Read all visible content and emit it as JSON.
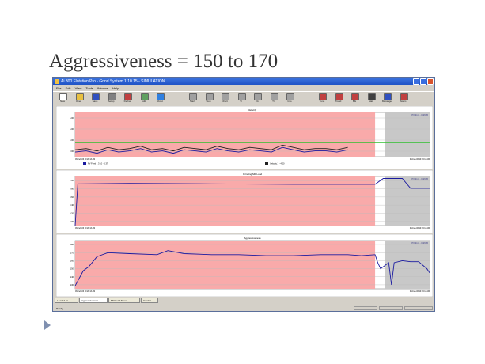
{
  "slide": {
    "title": "Aggressiveness = 150 to 170"
  },
  "app": {
    "window_title": "Ai 300 Flotation Pro - Grind System 1 10 15 - SIMULATION",
    "menu": [
      "File",
      "Edit",
      "View",
      "Tools",
      "Window",
      "Help"
    ],
    "toolbar": [
      {
        "label": "New",
        "color": "#ffffff"
      },
      {
        "label": "Open",
        "color": "#e8c040"
      },
      {
        "label": "Save",
        "color": "#3050c0"
      },
      {
        "label": "Setup",
        "color": "#808080"
      },
      {
        "label": "Define",
        "color": "#c04040"
      },
      {
        "label": "Edit",
        "color": "#60a060"
      },
      {
        "label": "About",
        "color": "#3080e0"
      },
      {
        "label": "Start",
        "color": "#a0a0a0"
      },
      {
        "label": "Stop",
        "color": "#a0a0a0"
      },
      {
        "label": "Chart",
        "color": "#a0a0a0"
      },
      {
        "label": "Tr",
        "color": "#a0a0a0"
      },
      {
        "label": "Ov",
        "color": "#a0a0a0"
      },
      {
        "label": "Tr",
        "color": "#a0a0a0"
      },
      {
        "label": "Info",
        "color": "#a0a0a0"
      },
      {
        "label": "Tune",
        "color": "#c04040"
      },
      {
        "label": "Trend",
        "color": "#c04040"
      },
      {
        "label": "Blk",
        "color": "#c04040"
      },
      {
        "label": "Stat",
        "color": "#404040"
      },
      {
        "label": "Message",
        "color": "#3050c0"
      },
      {
        "label": "Alarm",
        "color": "#c04040"
      }
    ],
    "status": "Ready"
  },
  "charts": [
    {
      "name": "Velocity",
      "title": "Velocity",
      "shade_label": "PV/S1.0 - C3/C26",
      "left_time": "09-Feb-06 10:28:13 AM",
      "mid_time": "",
      "right_time": "09-Feb-06 10:29:13 AM",
      "legend": [
        {
          "label": "PV Feed 1 3 10 - 6.37",
          "color": "#1a1aa0"
        },
        {
          "label": "Velocity 2 - 4.00",
          "color": "#202020"
        }
      ],
      "y_ticks": [
        "6.00",
        "5.00",
        "4.00",
        "3.00"
      ],
      "ylabel": ""
    },
    {
      "name": "Grinding Mill Load",
      "title": "Grinding Mill Load",
      "shade_label": "PV/S1.0 - C3/C26",
      "left_time": "09-Feb-06 10:28:13 AM",
      "mid_time": "",
      "right_time": "09-Feb-06 10:29:13 AM",
      "legend": [],
      "y_ticks": [
        "1.00",
        "0.80",
        "0.60",
        "0.40",
        "0.20",
        "0.00"
      ],
      "ylabel": ""
    },
    {
      "name": "Aggressiveness",
      "title": "Aggressiveness",
      "shade_label": "PV/S1.0 - C3/C26",
      "left_time": "09-Feb-06 10:28:13 AM",
      "mid_time": "",
      "right_time": "09-Feb-06 10:29:13 AM",
      "legend": [],
      "y_ticks": [
        "180",
        "170",
        "160",
        "150",
        "140",
        "130"
      ],
      "ylabel": ""
    }
  ],
  "tabs": [
    "Loaded Ini",
    "Aggressiveness",
    "Mill Load Trend",
    "Grinder"
  ],
  "chart_data": [
    {
      "type": "line",
      "title": "Velocity",
      "x": [
        0,
        4,
        8,
        12,
        16,
        20,
        24,
        28,
        32,
        36,
        40,
        44,
        48,
        52,
        56,
        60,
        64,
        68,
        72,
        76,
        80,
        84,
        88,
        92,
        96,
        100
      ],
      "series": [
        {
          "name": "PV Feed 1 3 10 - 6.37",
          "color": "#1a1aa0",
          "values": [
            3.2,
            3.3,
            3.1,
            3.4,
            3.2,
            3.3,
            3.5,
            3.2,
            3.3,
            3.1,
            3.4,
            3.3,
            3.2,
            3.5,
            3.3,
            3.2,
            3.4,
            3.3,
            3.2,
            3.6,
            3.4,
            3.2,
            3.3,
            3.3,
            3.2,
            3.4
          ]
        },
        {
          "name": "Velocity 2 - 4.00",
          "color": "#202020",
          "values": [
            3.4,
            3.5,
            3.3,
            3.6,
            3.4,
            3.5,
            3.7,
            3.4,
            3.5,
            3.3,
            3.6,
            3.5,
            3.4,
            3.7,
            3.5,
            3.4,
            3.6,
            3.5,
            3.4,
            3.8,
            3.6,
            3.4,
            3.5,
            3.5,
            3.4,
            3.6
          ]
        }
      ],
      "setpoint": 4.0,
      "ylim": [
        2.8,
        6.6
      ],
      "xlim": [
        0,
        130
      ]
    },
    {
      "type": "line",
      "title": "Grinding Mill Load",
      "series": [
        {
          "name": "Mill Load",
          "color": "#1a1aa0",
          "x": [
            0,
            1,
            2,
            20,
            50,
            80,
            110,
            113,
            114,
            116,
            120,
            123,
            124,
            130
          ],
          "values": [
            0.0,
            0.85,
            0.85,
            0.86,
            0.85,
            0.84,
            0.84,
            0.96,
            0.96,
            0.96,
            0.96,
            0.76,
            0.76,
            0.76
          ]
        }
      ],
      "ylim": [
        0.0,
        1.0
      ],
      "xlim": [
        0,
        130
      ]
    },
    {
      "type": "line",
      "title": "Aggressiveness",
      "series": [
        {
          "name": "Aggressiveness",
          "color": "#1a1aa0",
          "x": [
            0,
            3,
            5,
            8,
            12,
            20,
            30,
            34,
            40,
            50,
            60,
            70,
            80,
            90,
            100,
            105,
            110,
            111,
            112,
            115,
            116,
            117,
            120,
            123,
            126,
            129,
            130
          ],
          "values": [
            131,
            146,
            150,
            160,
            164,
            163,
            162,
            166,
            163,
            162,
            162,
            161,
            161,
            162,
            162,
            161,
            162,
            154,
            148,
            154,
            132,
            154,
            156,
            155,
            155,
            148,
            144
          ]
        }
      ],
      "ylim": [
        128,
        176
      ],
      "xlim": [
        0,
        130
      ]
    }
  ]
}
